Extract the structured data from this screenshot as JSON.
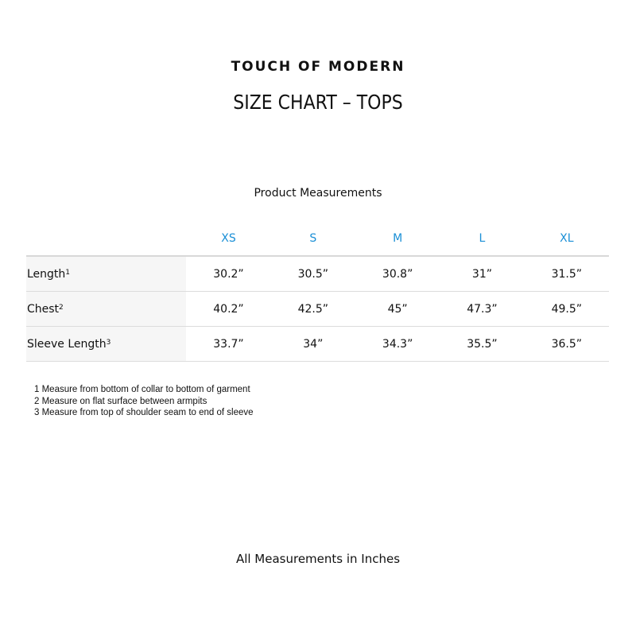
{
  "brand": "TOUCH OF MODERN",
  "title": "SIZE CHART – TOPS",
  "subtitle": "Product Measurements",
  "accent": "#1a8fd6",
  "sizes": [
    "XS",
    "S",
    "M",
    "L",
    "XL"
  ],
  "rows": [
    {
      "label": "Length",
      "sup": "1",
      "values": [
        "30.2”",
        "30.5”",
        "30.8”",
        "31”",
        "31.5”"
      ]
    },
    {
      "label": "Chest",
      "sup": "2",
      "values": [
        "40.2”",
        "42.5”",
        "45”",
        "47.3”",
        "49.5”"
      ]
    },
    {
      "label": "Sleeve Length",
      "sup": "3",
      "values": [
        "33.7”",
        "34”",
        "34.3”",
        "35.5”",
        "36.5”"
      ]
    }
  ],
  "notes": [
    "1 Measure from bottom of collar to bottom of garment",
    "2 Measure on flat surface between armpits",
    "3 Measure from top of shoulder seam to end of sleeve"
  ],
  "footer": "All Measurements in Inches"
}
